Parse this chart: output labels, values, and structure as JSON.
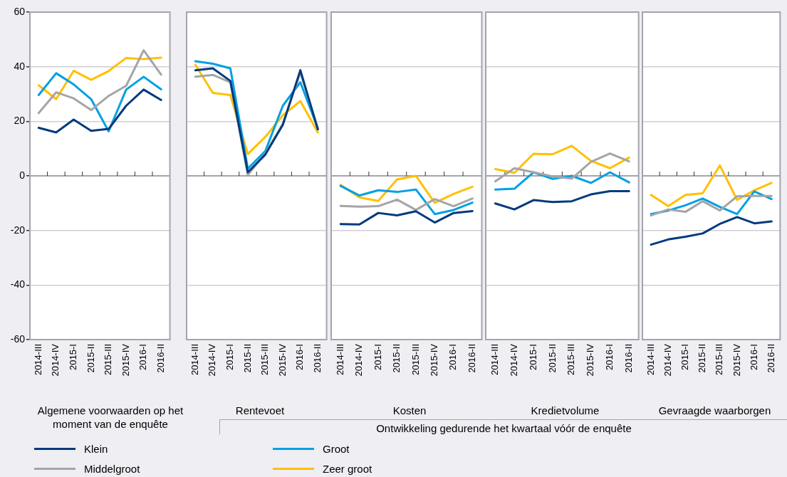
{
  "chart_data": [
    {
      "type": "line",
      "xlabel": "Algemene voorwaarden op het moment van de enquête",
      "categories": [
        "2014-III",
        "2014-IV",
        "2015-I",
        "2015-II",
        "2015-III",
        "2015-IV",
        "2016-I",
        "2016-II"
      ],
      "ylim": [
        -60,
        60
      ],
      "yticks": [
        -60,
        -40,
        -20,
        0,
        20,
        40,
        60
      ],
      "grid": "y",
      "legend": "bottom",
      "marker": "none",
      "line_style": "solid",
      "series": [
        {
          "name": "Klein",
          "color": "#003a7d",
          "values": [
            17.6,
            15.9,
            20.6,
            16.5,
            17.2,
            25.7,
            31.6,
            27.8
          ]
        },
        {
          "name": "Middelgroot",
          "color": "#a5a5a5",
          "values": [
            23,
            30.6,
            28.4,
            24.1,
            29.3,
            33,
            46,
            37.1
          ]
        },
        {
          "name": "Groot",
          "color": "#00a0e3",
          "values": [
            29.6,
            37.6,
            33.5,
            28.1,
            16.3,
            31.6,
            36.3,
            31.7
          ]
        },
        {
          "name": "Zeer groot",
          "color": "#ffc000",
          "values": [
            33.2,
            28.1,
            38.5,
            35.2,
            38.4,
            43.2,
            42.8,
            43.3
          ]
        }
      ]
    },
    {
      "type": "line",
      "xlabel": "Rentevoet",
      "annotations": [
        "Ontwikkeling gedurende het kwartaal vóór de enquête"
      ],
      "categories": [
        "2014-III",
        "2014-IV",
        "2015-I",
        "2015-II",
        "2015-III",
        "2015-IV",
        "2016-I",
        "2016-II"
      ],
      "ylim": [
        -60,
        60
      ],
      "yticks": [
        -60,
        -40,
        -20,
        0,
        20,
        40,
        60
      ],
      "tick_labels": "x",
      "grid": "y",
      "marker": "none",
      "line_style": "solid",
      "series": [
        {
          "color": "#003a7d",
          "values": [
            38.7,
            39.4,
            34.8,
            1.3,
            7.8,
            18.7,
            38.7,
            17
          ]
        },
        {
          "color": "#a5a5a5",
          "values": [
            36.3,
            37,
            34.3,
            0.3,
            8.3,
            19.1,
            37.8,
            17.4
          ]
        },
        {
          "color": "#00a0e3",
          "values": [
            42,
            41.1,
            39.4,
            2.6,
            9.1,
            25.7,
            34.3,
            17.4
          ]
        },
        {
          "color": "#ffc000",
          "values": [
            40.7,
            30.4,
            29.6,
            8,
            14.3,
            22.2,
            27.4,
            15.9
          ]
        }
      ]
    },
    {
      "type": "line",
      "xlabel": "Kosten",
      "categories": [
        "2014-III",
        "2014-IV",
        "2015-I",
        "2015-II",
        "2015-III",
        "2015-IV",
        "2016-I",
        "2016-II"
      ],
      "ylim": [
        -60,
        60
      ],
      "yticks": [
        -60,
        -40,
        -20,
        0,
        20,
        40,
        60
      ],
      "tick_labels": "x",
      "grid": "y",
      "marker": "none",
      "line_style": "solid",
      "series": [
        {
          "color": "#003a7d",
          "values": [
            -17.7,
            -17.8,
            -13.6,
            -14.5,
            -13,
            -17.1,
            -13.6,
            -12.9
          ]
        },
        {
          "color": "#a5a5a5",
          "values": [
            -11,
            -11.3,
            -11.1,
            -8.7,
            -12.5,
            -8.5,
            -11.1,
            -8.3
          ]
        },
        {
          "color": "#00a0e3",
          "values": [
            -3.7,
            -7.2,
            -5.3,
            -5.9,
            -5,
            -14,
            -12.5,
            -9.8
          ]
        },
        {
          "color": "#ffc000",
          "values": [
            -3.3,
            -7.9,
            -9.2,
            -1.3,
            0,
            -9.9,
            -6.6,
            -4
          ]
        }
      ]
    },
    {
      "type": "line",
      "xlabel": "Kredietvolume",
      "categories": [
        "2014-III",
        "2014-IV",
        "2015-I",
        "2015-II",
        "2015-III",
        "2015-IV",
        "2016-I",
        "2016-II"
      ],
      "ylim": [
        -60,
        60
      ],
      "yticks": [
        -60,
        -40,
        -20,
        0,
        20,
        40,
        60
      ],
      "tick_labels": "x",
      "grid": "y",
      "marker": "none",
      "line_style": "solid",
      "series": [
        {
          "color": "#003a7d",
          "values": [
            -10.1,
            -12.3,
            -8.9,
            -9.6,
            -9.3,
            -6.8,
            -5.6,
            -5.6
          ]
        },
        {
          "color": "#a5a5a5",
          "values": [
            -2,
            2.8,
            1.3,
            -0.2,
            -1,
            5.1,
            8.2,
            5.3
          ]
        },
        {
          "color": "#00a0e3",
          "values": [
            -5,
            -4.7,
            1.3,
            -1.1,
            0,
            -2.6,
            1.3,
            -2.4
          ]
        },
        {
          "color": "#ffc000",
          "values": [
            2.5,
            1.1,
            8.1,
            7.9,
            11,
            5.5,
            2.8,
            6.7
          ]
        }
      ]
    },
    {
      "type": "line",
      "xlabel": "Gevraagde waarborgen",
      "categories": [
        "2014-III",
        "2014-IV",
        "2015-I",
        "2015-II",
        "2015-III",
        "2015-IV",
        "2016-I",
        "2016-II"
      ],
      "ylim": [
        -60,
        60
      ],
      "yticks": [
        -60,
        -40,
        -20,
        0,
        20,
        40,
        60
      ],
      "tick_labels": "x",
      "grid": "y",
      "marker": "none",
      "line_style": "solid",
      "series": [
        {
          "color": "#003a7d",
          "values": [
            -25.2,
            -23.3,
            -22.3,
            -21.1,
            -17.6,
            -15.1,
            -17.4,
            -16.7
          ]
        },
        {
          "color": "#a5a5a5",
          "values": [
            -14.5,
            -12.3,
            -13.2,
            -9.3,
            -12.7,
            -7.5,
            -7.4,
            -7.4
          ]
        },
        {
          "color": "#00a0e3",
          "values": [
            -14,
            -12.7,
            -10.8,
            -8.3,
            -11.4,
            -14,
            -5.7,
            -8.5
          ]
        },
        {
          "color": "#ffc000",
          "values": [
            -7,
            -11.1,
            -7,
            -6.4,
            3.8,
            -8.8,
            -5.3,
            -2.6
          ]
        }
      ]
    }
  ]
}
